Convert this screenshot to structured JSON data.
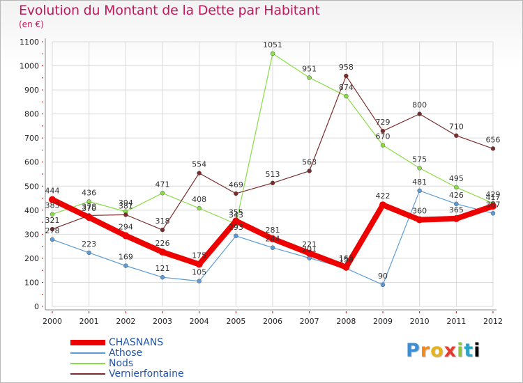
{
  "chart_data": {
    "type": "line",
    "title": "Evolution du Montant de la Dette par Habitant",
    "subtitle": "(en €)",
    "x": [
      "2000",
      "2001",
      "2002",
      "2003",
      "2004",
      "2005",
      "2006",
      "2007",
      "2008",
      "2009",
      "2010",
      "2011",
      "2012"
    ],
    "ylim": [
      0,
      1100
    ],
    "yticks": [
      0,
      100,
      200,
      300,
      400,
      500,
      600,
      700,
      800,
      900,
      1000,
      1100
    ],
    "grid": true,
    "legend_position": "bottom-left",
    "series": [
      {
        "name": "Athose",
        "color": "#5b9bd5",
        "values": [
          278,
          223,
          169,
          121,
          105,
          293,
          244,
          201,
          158,
          90,
          481,
          426,
          387
        ]
      },
      {
        "name": "Nods",
        "color": "#88dd44",
        "values": [
          383,
          436,
          394,
          471,
          408,
          343,
          1051,
          951,
          874,
          670,
          575,
          495,
          429
        ]
      },
      {
        "name": "Vernierfontaine",
        "color": "#7a2c2c",
        "values": [
          321,
          378,
          381,
          318,
          554,
          469,
          513,
          563,
          958,
          729,
          800,
          710,
          656
        ]
      },
      {
        "name": "CHASNANS",
        "color": "#ee0000",
        "values": [
          444,
          370,
          294,
          226,
          175,
          355,
          281,
          221,
          163,
          422,
          360,
          365,
          417
        ]
      }
    ],
    "legend_order": [
      "CHASNANS",
      "Athose",
      "Nods",
      "Vernierfontaine"
    ]
  },
  "logo": {
    "letters": [
      "P",
      "r",
      "o",
      "x",
      "i",
      "t",
      "i"
    ]
  }
}
